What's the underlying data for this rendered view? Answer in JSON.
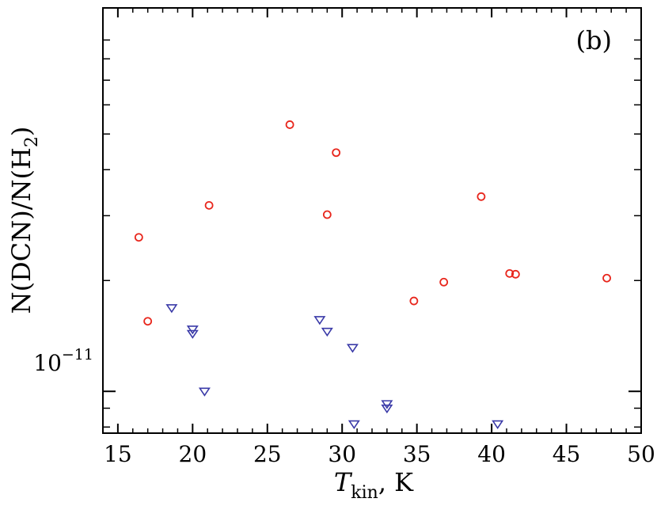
{
  "chart_data": {
    "type": "scatter",
    "panel_label": "(b)",
    "xlabel": {
      "main": "T",
      "sub": "kin",
      "tail": ", K"
    },
    "ylabel": {
      "part1": "N(DCN)/N(H",
      "sub": "2",
      "part2": ")"
    },
    "x_ticks": [
      "15",
      "20",
      "25",
      "30",
      "35",
      "40",
      "45",
      "50"
    ],
    "y_tick_label": {
      "base": "10",
      "exp": "−11"
    },
    "xlim": [
      14,
      50
    ],
    "ylim": [
      7.7e-12,
      1.1e-10
    ],
    "yscale": "log",
    "series": [
      {
        "marker": "circle",
        "color": "#e8261c",
        "points": [
          [
            16.4,
            2.62e-11
          ],
          [
            17.0,
            1.55e-11
          ],
          [
            21.1,
            3.2e-11
          ],
          [
            26.5,
            5.3e-11
          ],
          [
            29.6,
            4.45e-11
          ],
          [
            29.0,
            3.02e-11
          ],
          [
            34.8,
            1.76e-11
          ],
          [
            36.8,
            1.98e-11
          ],
          [
            39.3,
            3.38e-11
          ],
          [
            41.2,
            2.09e-11
          ],
          [
            41.6,
            2.08e-11
          ],
          [
            47.7,
            2.03e-11
          ]
        ]
      },
      {
        "marker": "triangle-down",
        "color": "#3a3aa8",
        "points": [
          [
            18.6,
            1.68e-11
          ],
          [
            20.0,
            1.47e-11
          ],
          [
            20.0,
            1.43e-11
          ],
          [
            20.8,
            9.97e-12
          ],
          [
            28.5,
            1.56e-11
          ],
          [
            29.0,
            1.45e-11
          ],
          [
            30.7,
            1.31e-11
          ],
          [
            30.8,
            8.13e-12
          ],
          [
            33.0,
            9.22e-12
          ],
          [
            33.0,
            8.97e-12
          ],
          [
            40.4,
            8.13e-12
          ]
        ]
      }
    ]
  }
}
